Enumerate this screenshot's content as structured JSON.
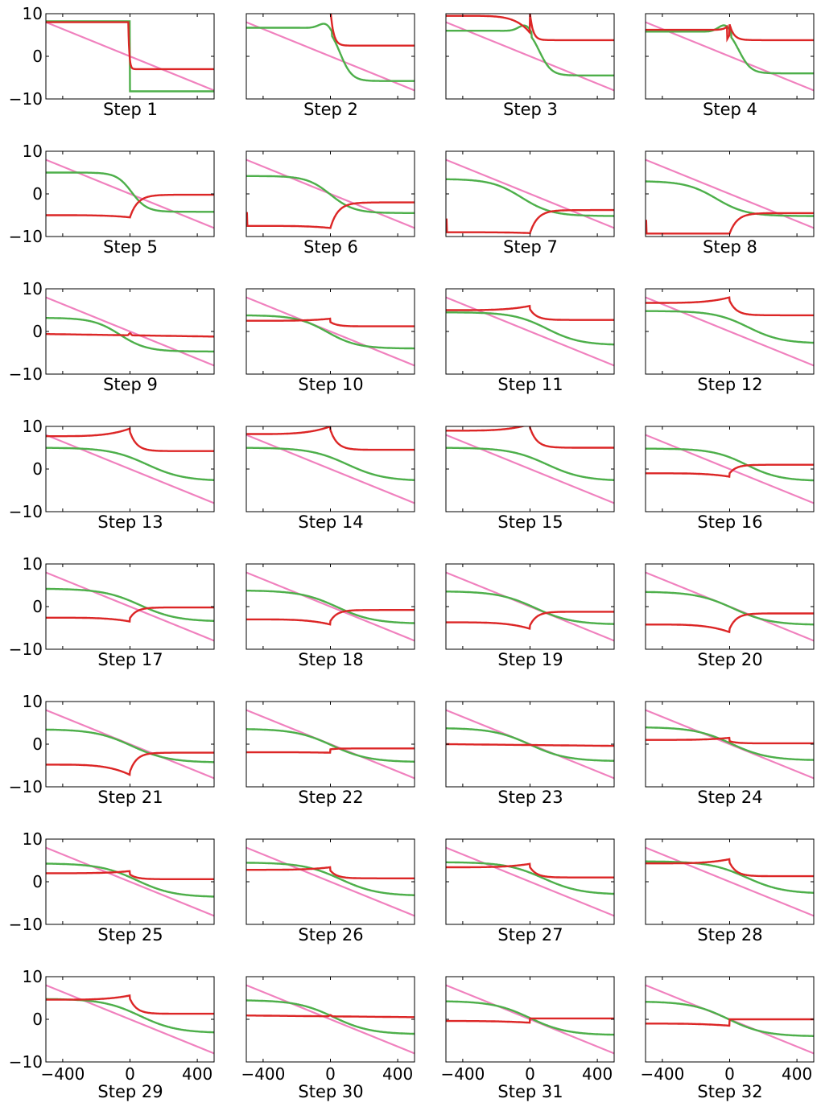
{
  "colors": {
    "red": "#dc2626",
    "green": "#4daf4a",
    "pink": "#f081be",
    "axis": "#000000"
  },
  "chart_data": {
    "type": "line",
    "layout": "8 rows x 4 columns of small-multiple panels",
    "xlim": [
      -500,
      500
    ],
    "ylim": [
      -10,
      10
    ],
    "yticks": [
      {
        "v": 10,
        "label": "10"
      },
      {
        "v": 0,
        "label": "0"
      },
      {
        "v": -10,
        "label": "−10"
      }
    ],
    "xticks": [
      {
        "v": -400,
        "label": "−400"
      },
      {
        "v": 0,
        "label": "0"
      },
      {
        "v": 400,
        "label": "400"
      }
    ],
    "grid": false,
    "line_series": {
      "x_start": -500,
      "x_end": 500,
      "y_start": 8,
      "y_end": -8
    },
    "panels": [
      {
        "label": "Step 1",
        "red": {
          "type": "step1"
        },
        "green": {
          "type": "step",
          "a": 8.2,
          "b": -8.2
        }
      },
      {
        "label": "Step 2",
        "red": {
          "type": "left",
          "a": 11,
          "b": 2.5
        },
        "green": {
          "type": "bump",
          "a": 6.7,
          "b": -5.8,
          "bump": 1.8
        }
      },
      {
        "label": "Step 3",
        "red": {
          "type": "left",
          "a": 10,
          "b": 3.8,
          "pre": 9.5,
          "dip": 5.5
        },
        "green": {
          "type": "bump",
          "a": 6.0,
          "b": -4.5,
          "bump": 2.0
        }
      },
      {
        "label": "Step 4",
        "red": {
          "type": "notch",
          "pre": 6.2,
          "post": 3.8,
          "jump": 7.5,
          "low": 4.0
        },
        "green": {
          "type": "bump",
          "a": 5.8,
          "b": -4.0,
          "bump": 2.2
        }
      },
      {
        "label": "Step 5",
        "red": {
          "type": "rise",
          "a": -5.0,
          "b": -0.2,
          "dip": -5.5
        },
        "green": {
          "type": "sig",
          "a": 5.0,
          "b": -4.2,
          "c": 10,
          "w": 45
        }
      },
      {
        "label": "Step 6",
        "red": {
          "type": "rise",
          "a": -7.5,
          "b": -2.0,
          "dip": -8.0,
          "spike": true
        },
        "green": {
          "type": "sig",
          "a": 4.2,
          "b": -4.5,
          "c": 0,
          "w": 70
        }
      },
      {
        "label": "Step 7",
        "red": {
          "type": "rise",
          "a": -9.0,
          "b": -3.8,
          "dip": -9.2,
          "spike": true
        },
        "green": {
          "type": "sig",
          "a": 3.5,
          "b": -5.2,
          "c": -50,
          "w": 90
        }
      },
      {
        "label": "Step 8",
        "red": {
          "type": "rise",
          "a": -9.3,
          "b": -4.5,
          "dip": -9.3,
          "spike": true
        },
        "green": {
          "type": "sig",
          "a": 3.0,
          "b": -5.2,
          "c": -80,
          "w": 90
        }
      },
      {
        "label": "Step 9",
        "red": {
          "type": "flat",
          "a": -0.6,
          "b": -1.2,
          "bump": 0.5
        },
        "green": {
          "type": "sig",
          "a": 3.2,
          "b": -4.7,
          "c": -60,
          "w": 80
        }
      },
      {
        "label": "Step 10",
        "red": {
          "type": "kink",
          "a": 2.5,
          "b": 1.2,
          "peak": 3.0
        },
        "green": {
          "type": "sig",
          "a": 3.8,
          "b": -4.0,
          "c": -20,
          "w": 90
        }
      },
      {
        "label": "Step 11",
        "red": {
          "type": "kink",
          "a": 5.0,
          "b": 2.7,
          "peak": 6.0
        },
        "green": {
          "type": "sig",
          "a": 4.5,
          "b": -3.2,
          "c": 100,
          "w": 100
        }
      },
      {
        "label": "Step 12",
        "red": {
          "type": "kink",
          "a": 6.7,
          "b": 3.8,
          "peak": 8.0
        },
        "green": {
          "type": "sig",
          "a": 4.8,
          "b": -2.8,
          "c": 110,
          "w": 100
        }
      },
      {
        "label": "Step 13",
        "red": {
          "type": "kink",
          "a": 7.7,
          "b": 4.2,
          "peak": 9.5
        },
        "green": {
          "type": "sig",
          "a": 5.0,
          "b": -2.8,
          "c": 100,
          "w": 110
        }
      },
      {
        "label": "Step 14",
        "red": {
          "type": "kink",
          "a": 8.2,
          "b": 4.5,
          "peak": 10.0
        },
        "green": {
          "type": "sig",
          "a": 5.0,
          "b": -2.8,
          "c": 100,
          "w": 110
        }
      },
      {
        "label": "Step 15",
        "red": {
          "type": "kink",
          "a": 9.0,
          "b": 5.0,
          "peak": 10.5
        },
        "green": {
          "type": "sig",
          "a": 5.0,
          "b": -2.8,
          "c": 100,
          "w": 110
        }
      },
      {
        "label": "Step 16",
        "red": {
          "type": "dipkink",
          "a": -1.0,
          "b": 1.0,
          "dip": -1.8
        },
        "green": {
          "type": "sig",
          "a": 4.8,
          "b": -2.8,
          "c": 100,
          "w": 100
        }
      },
      {
        "label": "Step 17",
        "red": {
          "type": "dipkink",
          "a": -2.6,
          "b": -0.2,
          "dip": -3.5
        },
        "green": {
          "type": "sig",
          "a": 4.2,
          "b": -3.5,
          "c": 60,
          "w": 110
        }
      },
      {
        "label": "Step 18",
        "red": {
          "type": "dipkink",
          "a": -3.0,
          "b": -0.8,
          "dip": -4.2
        },
        "green": {
          "type": "sig",
          "a": 3.8,
          "b": -4.0,
          "c": 40,
          "w": 110
        }
      },
      {
        "label": "Step 19",
        "red": {
          "type": "dipkink",
          "a": -3.7,
          "b": -1.2,
          "dip": -5.2
        },
        "green": {
          "type": "sig",
          "a": 3.6,
          "b": -4.2,
          "c": 30,
          "w": 110
        }
      },
      {
        "label": "Step 20",
        "red": {
          "type": "dipkink",
          "a": -4.2,
          "b": -1.6,
          "dip": -6.0
        },
        "green": {
          "type": "sig",
          "a": 3.5,
          "b": -4.3,
          "c": 20,
          "w": 110
        }
      },
      {
        "label": "Step 21",
        "red": {
          "type": "dipkink",
          "a": -4.8,
          "b": -2.0,
          "dip": -7.2
        },
        "green": {
          "type": "sig",
          "a": 3.5,
          "b": -4.3,
          "c": 10,
          "w": 110
        }
      },
      {
        "label": "Step 22",
        "red": {
          "type": "dipkink",
          "a": -1.9,
          "b": -1.0,
          "dip": -2.0
        },
        "green": {
          "type": "sig",
          "a": 3.6,
          "b": -4.2,
          "c": 10,
          "w": 110
        }
      },
      {
        "label": "Step 23",
        "red": {
          "type": "flat",
          "a": 0.0,
          "b": -0.4,
          "bump": 0.0
        },
        "green": {
          "type": "sig",
          "a": 3.8,
          "b": -4.0,
          "c": 0,
          "w": 110
        }
      },
      {
        "label": "Step 24",
        "red": {
          "type": "kink",
          "a": 1.0,
          "b": 0.2,
          "peak": 1.5
        },
        "green": {
          "type": "sig",
          "a": 4.0,
          "b": -3.8,
          "c": 10,
          "w": 110
        }
      },
      {
        "label": "Step 25",
        "red": {
          "type": "kink",
          "a": 2.0,
          "b": 0.6,
          "peak": 2.5
        },
        "green": {
          "type": "sig",
          "a": 4.3,
          "b": -3.6,
          "c": 40,
          "w": 110
        }
      },
      {
        "label": "Step 26",
        "red": {
          "type": "kink",
          "a": 2.8,
          "b": 0.8,
          "peak": 3.4
        },
        "green": {
          "type": "sig",
          "a": 4.5,
          "b": -3.3,
          "c": 60,
          "w": 110
        }
      },
      {
        "label": "Step 27",
        "red": {
          "type": "kink",
          "a": 3.4,
          "b": 1.0,
          "peak": 4.2
        },
        "green": {
          "type": "sig",
          "a": 4.6,
          "b": -3.0,
          "c": 80,
          "w": 110
        }
      },
      {
        "label": "Step 28",
        "red": {
          "type": "kink",
          "a": 4.3,
          "b": 1.3,
          "peak": 5.3
        },
        "green": {
          "type": "sig",
          "a": 4.8,
          "b": -2.8,
          "c": 100,
          "w": 110
        }
      },
      {
        "label": "Step 29",
        "red": {
          "type": "kink",
          "a": 4.6,
          "b": 1.3,
          "peak": 5.6
        },
        "green": {
          "type": "sig",
          "a": 4.8,
          "b": -3.2,
          "c": 60,
          "w": 110
        }
      },
      {
        "label": "Step 30",
        "red": {
          "type": "flat",
          "a": 0.9,
          "b": 0.5,
          "bump": 0.3
        },
        "green": {
          "type": "sig",
          "a": 4.5,
          "b": -3.5,
          "c": 20,
          "w": 110
        }
      },
      {
        "label": "Step 31",
        "red": {
          "type": "stepup",
          "a": -0.4,
          "b": 0.2,
          "dip": -0.8
        },
        "green": {
          "type": "sig",
          "a": 4.3,
          "b": -3.7,
          "c": 0,
          "w": 110
        }
      },
      {
        "label": "Step 32",
        "red": {
          "type": "stepup",
          "a": -1.0,
          "b": 0.0,
          "dip": -1.5
        },
        "green": {
          "type": "sig",
          "a": 4.2,
          "b": -4.0,
          "c": -10,
          "w": 110
        }
      }
    ]
  }
}
